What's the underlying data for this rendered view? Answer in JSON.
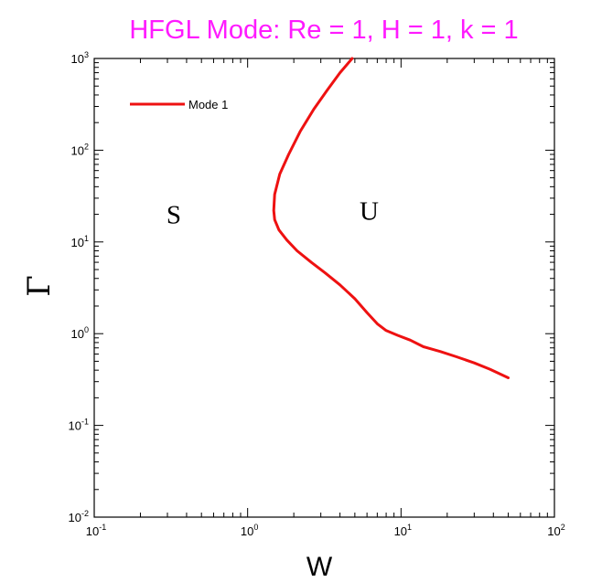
{
  "chart_data": {
    "type": "line",
    "title": "HFGL Mode: Re = 1, H = 1, k = 1",
    "xlabel": "W",
    "ylabel": "Γ",
    "xscale": "log",
    "yscale": "log",
    "xlim": [
      0.1,
      100
    ],
    "ylim": [
      0.01,
      1000
    ],
    "x_ticks": [
      {
        "base": "10",
        "exp": "-1",
        "value": 0.1
      },
      {
        "base": "10",
        "exp": "0",
        "value": 1
      },
      {
        "base": "10",
        "exp": "1",
        "value": 10
      },
      {
        "base": "10",
        "exp": "2",
        "value": 100
      }
    ],
    "y_ticks": [
      {
        "base": "10",
        "exp": "-2",
        "value": 0.01
      },
      {
        "base": "10",
        "exp": "-1",
        "value": 0.1
      },
      {
        "base": "10",
        "exp": "0",
        "value": 1
      },
      {
        "base": "10",
        "exp": "1",
        "value": 10
      },
      {
        "base": "10",
        "exp": "2",
        "value": 100
      },
      {
        "base": "10",
        "exp": "3",
        "value": 1000
      }
    ],
    "legend": {
      "placement": "top-left"
    },
    "grid": false,
    "series": [
      {
        "name": "Mode 1",
        "color": "#ee1111",
        "x": [
          4.8,
          4.0,
          3.3,
          2.7,
          2.2,
          1.85,
          1.62,
          1.5,
          1.48,
          1.5,
          1.6,
          1.8,
          2.1,
          2.6,
          3.2,
          4.0,
          5.0,
          6.0,
          7.0,
          8.0,
          9.5,
          11.5,
          14.0,
          18.0,
          23.0,
          30.0,
          38.0,
          50.0
        ],
        "y": [
          1000,
          700,
          450,
          280,
          160,
          90,
          55,
          33,
          22,
          17.5,
          13.5,
          10.5,
          8.0,
          6.0,
          4.6,
          3.4,
          2.4,
          1.7,
          1.28,
          1.08,
          0.96,
          0.85,
          0.72,
          0.64,
          0.56,
          0.48,
          0.41,
          0.33
        ]
      }
    ],
    "annotations": [
      {
        "text": "S",
        "x": 0.33,
        "y": 20
      },
      {
        "text": "U",
        "x": 6.2,
        "y": 22
      }
    ]
  }
}
